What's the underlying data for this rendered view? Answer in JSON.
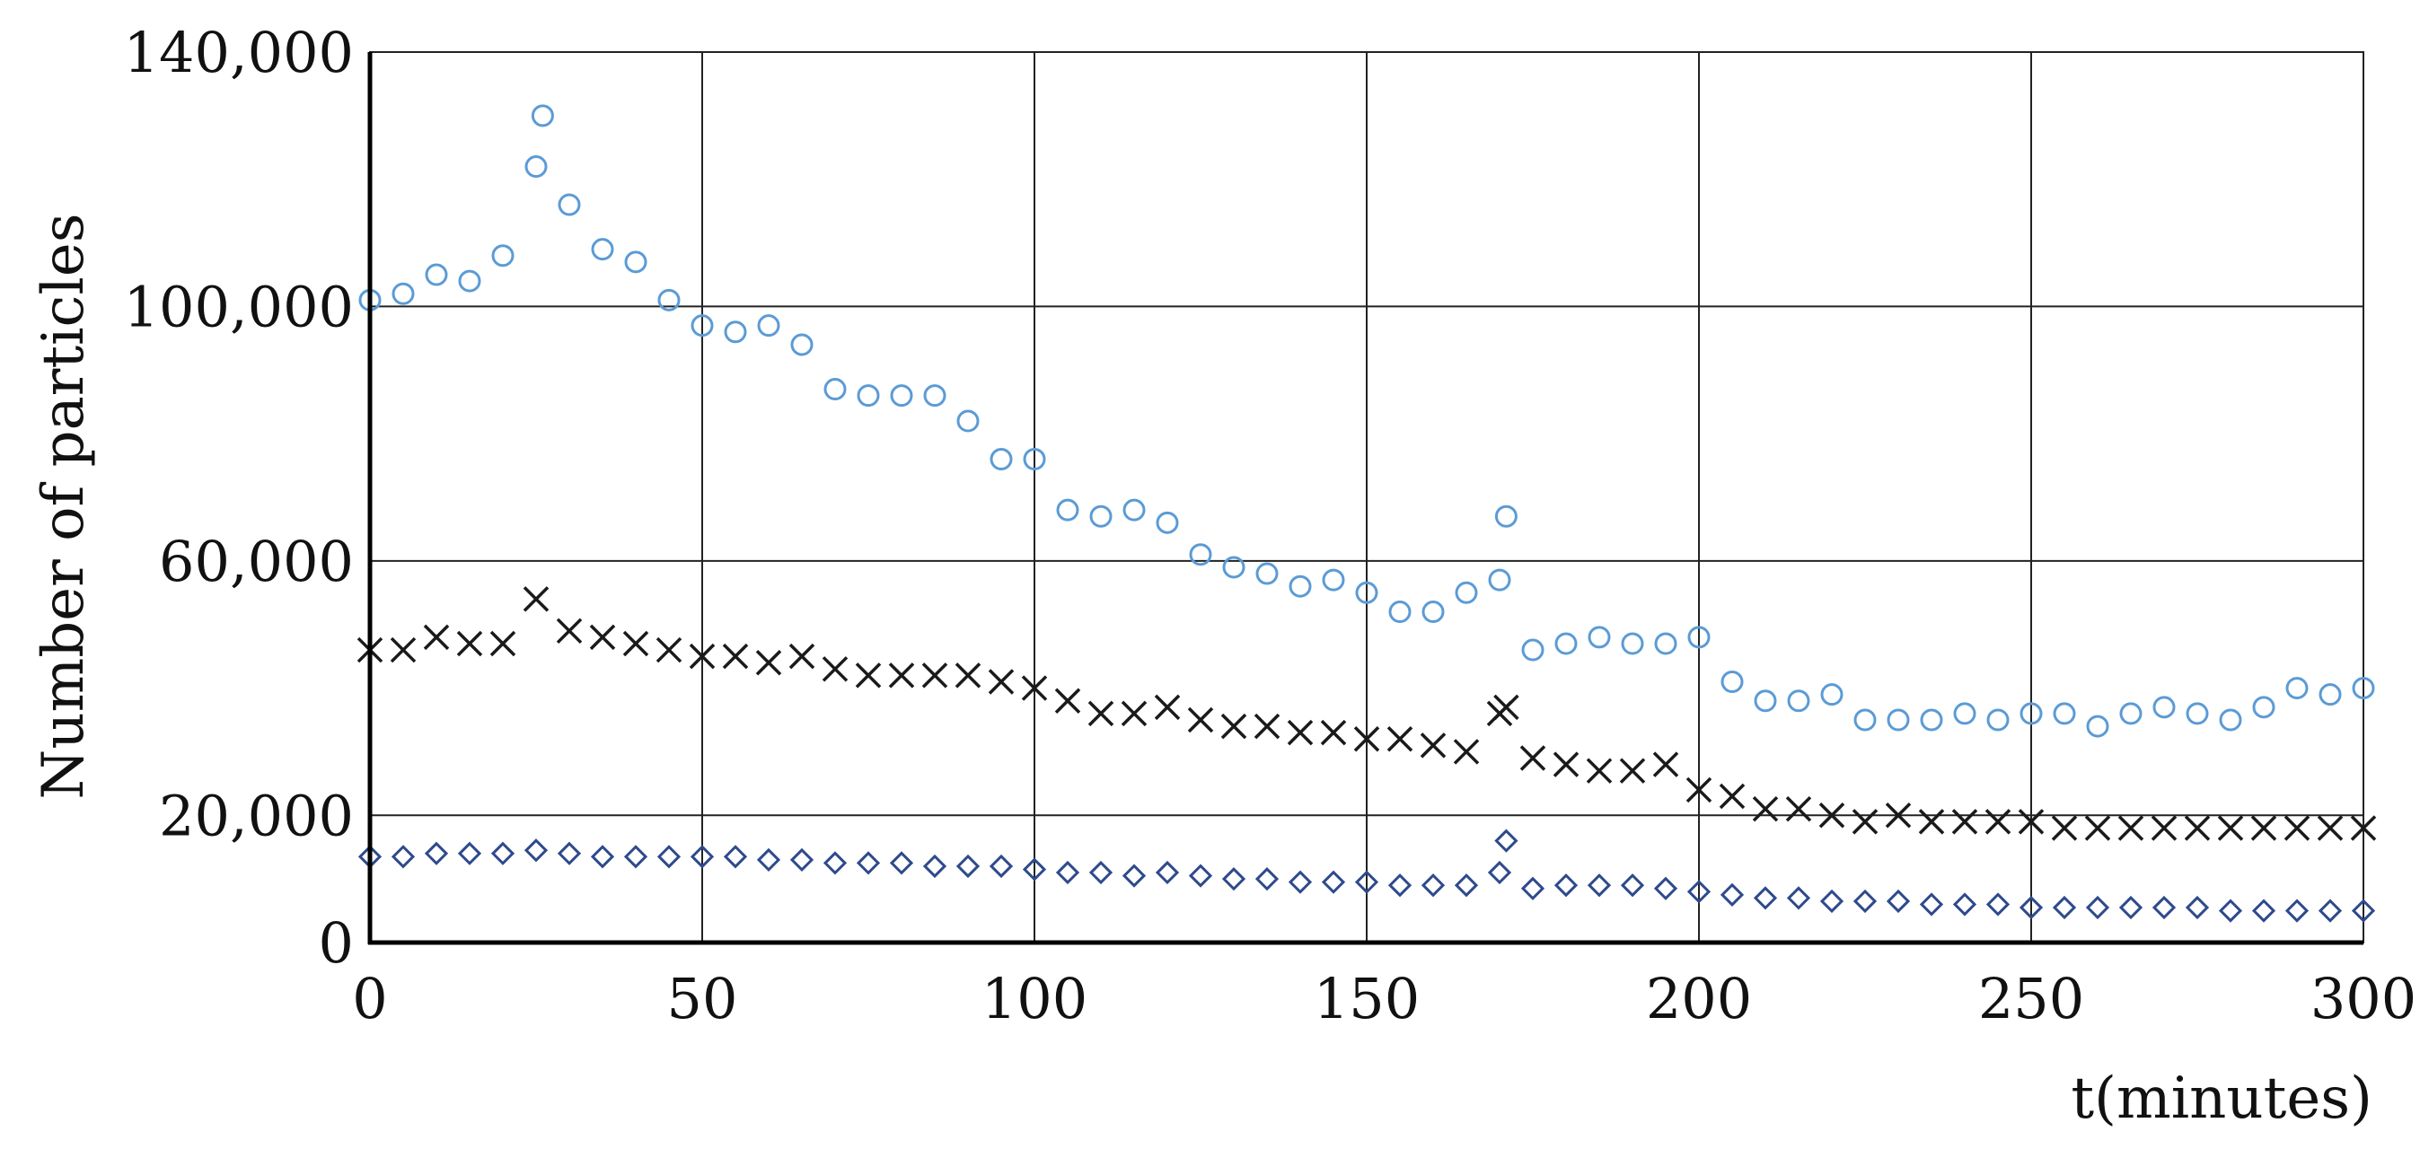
{
  "chart_data": {
    "type": "scatter",
    "title": "",
    "xlabel": "t(minutes)",
    "ylabel": "Number of particles",
    "xlim": [
      0,
      300
    ],
    "ylim": [
      0,
      140000
    ],
    "x_ticks": [
      0,
      50,
      100,
      150,
      200,
      250,
      300
    ],
    "x_tick_labels": [
      "0",
      "50",
      "100",
      "150",
      "200",
      "250",
      "300"
    ],
    "y_ticks": [
      0,
      20000,
      60000,
      100000,
      140000
    ],
    "y_tick_labels": [
      "0",
      "20,000",
      "60,000",
      "100,000",
      "140,000"
    ],
    "grid": true,
    "legend": "none",
    "series": [
      {
        "marker": "circle",
        "color": "#5b9bd5",
        "x": [
          0,
          5,
          10,
          15,
          20,
          25,
          26,
          30,
          35,
          40,
          45,
          50,
          55,
          60,
          65,
          70,
          75,
          80,
          85,
          90,
          95,
          100,
          105,
          110,
          115,
          120,
          125,
          130,
          135,
          140,
          145,
          150,
          155,
          160,
          165,
          170,
          171,
          175,
          180,
          185,
          190,
          195,
          200,
          205,
          210,
          215,
          220,
          225,
          230,
          235,
          240,
          245,
          250,
          255,
          260,
          265,
          270,
          275,
          280,
          285,
          290,
          295,
          300
        ],
        "y": [
          101000,
          102000,
          105000,
          104000,
          108000,
          122000,
          130000,
          116000,
          109000,
          107000,
          101000,
          97000,
          96000,
          97000,
          94000,
          87000,
          86000,
          86000,
          86000,
          82000,
          76000,
          76000,
          68000,
          67000,
          68000,
          66000,
          61000,
          59000,
          58000,
          56000,
          57000,
          55000,
          52000,
          52000,
          55000,
          57000,
          67000,
          46000,
          47000,
          48000,
          47000,
          47000,
          48000,
          41000,
          38000,
          38000,
          39000,
          35000,
          35000,
          35000,
          36000,
          35000,
          36000,
          36000,
          34000,
          36000,
          37000,
          36000,
          35000,
          37000,
          40000,
          39000,
          40000
        ]
      },
      {
        "marker": "x",
        "color": "#1a1a1a",
        "x": [
          0,
          5,
          10,
          15,
          20,
          25,
          30,
          35,
          40,
          45,
          50,
          55,
          60,
          65,
          70,
          75,
          80,
          85,
          90,
          95,
          100,
          105,
          110,
          115,
          120,
          125,
          130,
          135,
          140,
          145,
          150,
          155,
          160,
          165,
          170,
          171,
          175,
          180,
          185,
          190,
          195,
          200,
          205,
          210,
          215,
          220,
          225,
          230,
          235,
          240,
          245,
          250,
          255,
          260,
          265,
          270,
          275,
          280,
          285,
          290,
          295,
          300
        ],
        "y": [
          46000,
          46000,
          48000,
          47000,
          47000,
          54000,
          49000,
          48000,
          47000,
          46000,
          45000,
          45000,
          44000,
          45000,
          43000,
          42000,
          42000,
          42000,
          42000,
          41000,
          40000,
          38000,
          36000,
          36000,
          37000,
          35000,
          34000,
          34000,
          33000,
          33000,
          32000,
          32000,
          31000,
          30000,
          36000,
          37000,
          29000,
          28000,
          27000,
          27000,
          28000,
          24000,
          23000,
          21000,
          21000,
          20000,
          19000,
          20000,
          19000,
          19000,
          19000,
          19000,
          18000,
          18000,
          18000,
          18000,
          18000,
          18000,
          18000,
          18000,
          18000,
          18000
        ]
      },
      {
        "marker": "diamond",
        "color": "#2e4a8c",
        "x": [
          0,
          5,
          10,
          15,
          20,
          25,
          30,
          35,
          40,
          45,
          50,
          55,
          60,
          65,
          70,
          75,
          80,
          85,
          90,
          95,
          100,
          105,
          110,
          115,
          120,
          125,
          130,
          135,
          140,
          145,
          150,
          155,
          160,
          165,
          170,
          171,
          175,
          180,
          185,
          190,
          195,
          200,
          205,
          210,
          215,
          220,
          225,
          230,
          235,
          240,
          245,
          250,
          255,
          260,
          265,
          270,
          275,
          280,
          285,
          290,
          295,
          300
        ],
        "y": [
          13500,
          13500,
          14000,
          14000,
          14000,
          14500,
          14000,
          13500,
          13500,
          13500,
          13500,
          13500,
          13000,
          13000,
          12500,
          12500,
          12500,
          12000,
          12000,
          12000,
          11500,
          11000,
          11000,
          10500,
          11000,
          10500,
          10000,
          10000,
          9500,
          9500,
          9500,
          9000,
          9000,
          9000,
          11000,
          16000,
          8500,
          9000,
          9000,
          9000,
          8500,
          8000,
          7500,
          7000,
          7000,
          6500,
          6500,
          6500,
          6000,
          6000,
          6000,
          5500,
          5500,
          5500,
          5500,
          5500,
          5500,
          5000,
          5000,
          5000,
          5000,
          5000
        ]
      }
    ]
  }
}
